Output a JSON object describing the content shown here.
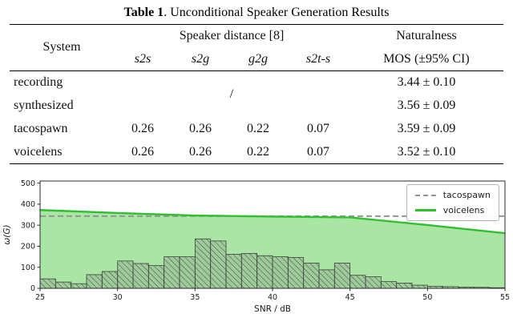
{
  "table": {
    "caption_label": "Table 1",
    "caption_text": ". Unconditional Speaker Generation Results",
    "headers": {
      "system": "System",
      "speaker_distance": "Speaker distance [8]",
      "naturalness": "Naturalness",
      "sub": [
        "s2s",
        "s2g",
        "g2g",
        "s2t-s"
      ],
      "mos": "MOS (±95% CI)"
    },
    "rows": [
      {
        "system": "recording",
        "distances_note": "/",
        "mos": "3.44 ± 0.10"
      },
      {
        "system": "synthesized",
        "mos": "3.56 ± 0.09"
      },
      {
        "system": "tacospawn",
        "distances": [
          "0.26",
          "0.26",
          "0.22",
          "0.07"
        ],
        "mos": "3.59 ± 0.09"
      },
      {
        "system": "voicelens",
        "distances": [
          "0.26",
          "0.26",
          "0.22",
          "0.07"
        ],
        "mos": "3.52 ± 0.10"
      }
    ]
  },
  "chart_data": {
    "type": "line",
    "title": "",
    "xlabel": "SNR / dB",
    "ylabel": "ω(G)",
    "xlim": [
      25,
      55
    ],
    "ylim": [
      0,
      510
    ],
    "xticks": [
      25,
      30,
      35,
      40,
      45,
      50,
      55
    ],
    "yticks": [
      0,
      100,
      200,
      300,
      400,
      500
    ],
    "grid": false,
    "legend_position": "upper right",
    "series": [
      {
        "name": "tacospawn",
        "style": "dashed",
        "color": "#949494",
        "x": [
          25,
          55
        ],
        "y": [
          343,
          343
        ]
      },
      {
        "name": "voicelens",
        "style": "solid",
        "color": "#2fbf2f",
        "fill": "#a9e6a4",
        "x": [
          25,
          30,
          35,
          40,
          45,
          50,
          55
        ],
        "y": [
          372,
          358,
          346,
          341,
          337,
          301,
          262
        ]
      }
    ],
    "histogram": {
      "bin_start": 25,
      "bin_width": 1,
      "hatch": "///",
      "heights": [
        45,
        30,
        22,
        65,
        80,
        130,
        118,
        108,
        150,
        150,
        235,
        225,
        162,
        166,
        155,
        150,
        147,
        120,
        88,
        120,
        62,
        55,
        32,
        25,
        15,
        10,
        8,
        6,
        5,
        3
      ]
    }
  }
}
